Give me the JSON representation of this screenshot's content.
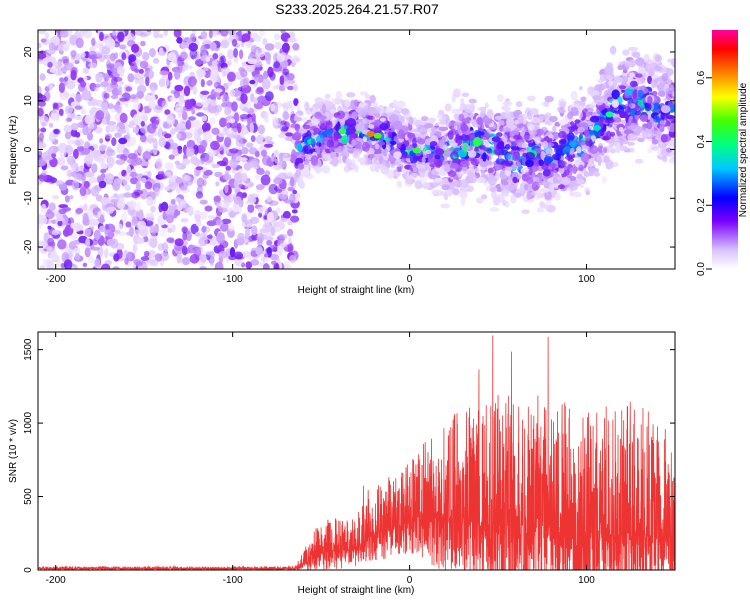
{
  "title": "S233.2025.264.21.57.R07",
  "chart_data": [
    {
      "type": "heatmap",
      "xlabel": "Height of straight line (km)",
      "ylabel": "Frequency (Hz)",
      "xlim": [
        -210,
        150
      ],
      "ylim": [
        -24.5,
        24.5
      ],
      "xticks": [
        -200,
        -100,
        0,
        100
      ],
      "yticks": [
        -20,
        -10,
        0,
        10,
        20
      ],
      "colorbar": {
        "label": "Normalized spectral amplitude",
        "range": [
          0,
          0.75
        ],
        "ticks": [
          0.0,
          0.2,
          0.4,
          0.6
        ],
        "tick_labels": [
          "0.0",
          "0.2",
          "0.4",
          "0.6"
        ]
      },
      "noise_region_end": -64,
      "signal_ridge": [
        {
          "x": -64,
          "freq": 0
        },
        {
          "x": -45,
          "freq": 3.5
        },
        {
          "x": -30,
          "freq": 4.0
        },
        {
          "x": -15,
          "freq": 2.5
        },
        {
          "x": 0,
          "freq": 0
        },
        {
          "x": 20,
          "freq": -1.0
        },
        {
          "x": 40,
          "freq": 1.5
        },
        {
          "x": 60,
          "freq": -1.5
        },
        {
          "x": 80,
          "freq": -1.0
        },
        {
          "x": 100,
          "freq": 2.0
        },
        {
          "x": 120,
          "freq": 10.0
        },
        {
          "x": 150,
          "freq": 8.0
        }
      ]
    },
    {
      "type": "line",
      "xlabel": "Height of straight line (km)",
      "ylabel": "SNR (10 * v/v)",
      "xlim": [
        -210,
        150
      ],
      "ylim": [
        0,
        1620
      ],
      "xticks": [
        -200,
        -100,
        0,
        100
      ],
      "yticks": [
        0,
        500,
        1000,
        1500
      ],
      "color": "#ee3333",
      "envelope": [
        {
          "x": -210,
          "base": 10,
          "amp": 15
        },
        {
          "x": -65,
          "base": 10,
          "amp": 15
        },
        {
          "x": -50,
          "base": 120,
          "amp": 230
        },
        {
          "x": -30,
          "base": 140,
          "amp": 230
        },
        {
          "x": -25,
          "base": 220,
          "amp": 320
        },
        {
          "x": 0,
          "base": 330,
          "amp": 400
        },
        {
          "x": 20,
          "base": 360,
          "amp": 700
        },
        {
          "x": 50,
          "base": 300,
          "amp": 900
        },
        {
          "x": 80,
          "base": 300,
          "amp": 900
        },
        {
          "x": 100,
          "base": 180,
          "amp": 900
        },
        {
          "x": 130,
          "base": 280,
          "amp": 900
        },
        {
          "x": 150,
          "base": 180,
          "amp": 700
        }
      ]
    }
  ]
}
